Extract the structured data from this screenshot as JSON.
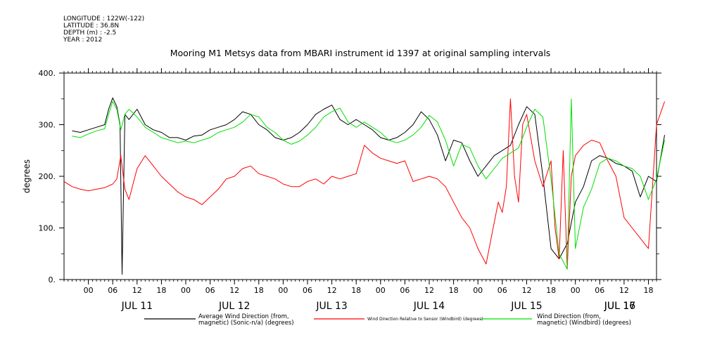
{
  "metadata": {
    "longitude": "LONGITUDE : 122W(-122)",
    "latitude": "LATITUDE : 36.8N",
    "depth": "DEPTH (m) : -2.5",
    "year": "YEAR : 2012"
  },
  "chart_data": {
    "type": "line",
    "title": "Mooring M1 Metsys data from MBARI instrument id 1397 at original sampling intervals",
    "ylabel": "degrees",
    "ylim": [
      0,
      400
    ],
    "y_ticks": [
      0,
      100,
      200,
      300,
      400
    ],
    "y_tick_labels": [
      "0.",
      "100.",
      "200.",
      "300.",
      "400."
    ],
    "x_unit": "hours since 2012-07-11 00:00",
    "xlim": [
      -6,
      140
    ],
    "x_ticks": [
      0,
      6,
      12,
      18,
      24,
      30,
      36,
      42,
      48,
      54,
      60,
      66,
      72,
      78,
      84,
      90,
      96,
      102,
      108,
      114,
      120,
      126,
      132,
      138
    ],
    "x_tick_labels": [
      "00",
      "06",
      "12",
      "18",
      "00",
      "06",
      "12",
      "18",
      "00",
      "06",
      "12",
      "18",
      "00",
      "06",
      "12",
      "18",
      "00",
      "06",
      "12",
      "18",
      "00",
      "06",
      "12",
      "18"
    ],
    "day_labels": [
      {
        "x": 12,
        "label": "JUL 11"
      },
      {
        "x": 36,
        "label": "JUL 12"
      },
      {
        "x": 60,
        "label": "JUL 13"
      },
      {
        "x": 84,
        "label": "JUL 14"
      },
      {
        "x": 108,
        "label": "JUL 15"
      },
      {
        "x": 132,
        "label": "JUL 16"
      },
      {
        "x": 156,
        "label": "JUL 17"
      }
    ],
    "grid": false,
    "legend_position": "bottom",
    "series": [
      {
        "name": "Average Wind Direction (from, magnetic) (Sonic-n/a) (degrees)",
        "legend_lines": [
          "Average Wind Direction (from,",
          "magnetic) (Sonic-n/a) (degrees)"
        ],
        "color": "#000000",
        "x": [
          -4,
          -2,
          0,
          2,
          4,
          5,
          6,
          7,
          7.8,
          8.3,
          9,
          10,
          12,
          14,
          16,
          18,
          20,
          22,
          24,
          26,
          28,
          30,
          32,
          34,
          36,
          38,
          40,
          42,
          44,
          46,
          48,
          50,
          52,
          54,
          56,
          58,
          60,
          62,
          64,
          66,
          68,
          70,
          72,
          74,
          76,
          78,
          80,
          82,
          84,
          86,
          88,
          90,
          92,
          94,
          96,
          98,
          100,
          102,
          104,
          106,
          108,
          110,
          112,
          114,
          116,
          118,
          120,
          122,
          124,
          126,
          128,
          130,
          132,
          134,
          136,
          138,
          140,
          142
        ],
        "y": [
          288,
          285,
          290,
          295,
          300,
          330,
          352,
          335,
          300,
          10,
          320,
          310,
          330,
          300,
          290,
          285,
          275,
          275,
          270,
          278,
          280,
          290,
          295,
          300,
          310,
          325,
          320,
          300,
          290,
          275,
          270,
          275,
          285,
          300,
          320,
          330,
          338,
          310,
          300,
          310,
          300,
          290,
          275,
          270,
          275,
          285,
          300,
          325,
          310,
          280,
          230,
          270,
          265,
          230,
          200,
          220,
          240,
          250,
          260,
          300,
          335,
          320,
          200,
          60,
          40,
          70,
          150,
          180,
          230,
          240,
          235,
          225,
          220,
          210,
          160,
          200,
          190,
          280
        ]
      },
      {
        "name": "Wind Direction Relative to Sensor (Windbird) (degrees)",
        "legend_lines": [
          "Wind Direction Relative to Sensor (Windbird) (degrees)"
        ],
        "color": "#ff0000",
        "x": [
          -6,
          -4,
          -2,
          0,
          2,
          4,
          6,
          7,
          8,
          9,
          10,
          12,
          14,
          16,
          18,
          20,
          22,
          24,
          26,
          28,
          30,
          32,
          34,
          36,
          38,
          40,
          42,
          44,
          46,
          48,
          50,
          52,
          54,
          56,
          58,
          60,
          62,
          64,
          66,
          68,
          70,
          72,
          74,
          76,
          78,
          80,
          82,
          84,
          86,
          88,
          90,
          92,
          94,
          96,
          98,
          100,
          101,
          102,
          103,
          104,
          105,
          106,
          107,
          108,
          110,
          112,
          114,
          115,
          116,
          117,
          118,
          119,
          120,
          122,
          124,
          126,
          128,
          130,
          132,
          134,
          136,
          138,
          140,
          142
        ],
        "y": [
          190,
          180,
          175,
          172,
          175,
          178,
          185,
          195,
          240,
          175,
          155,
          215,
          240,
          220,
          200,
          185,
          170,
          160,
          155,
          145,
          160,
          175,
          195,
          200,
          215,
          220,
          205,
          200,
          195,
          185,
          180,
          180,
          190,
          195,
          185,
          200,
          195,
          200,
          205,
          260,
          245,
          235,
          230,
          225,
          230,
          190,
          195,
          200,
          195,
          180,
          150,
          120,
          100,
          60,
          30,
          110,
          150,
          130,
          180,
          350,
          200,
          150,
          300,
          320,
          230,
          180,
          230,
          100,
          40,
          250,
          20,
          200,
          240,
          260,
          270,
          265,
          230,
          200,
          120,
          100,
          80,
          60,
          300,
          345
        ]
      },
      {
        "name": "Wind Direction (from, magnetic) (Windbird) (degrees)",
        "legend_lines": [
          "Wind Direction (from,",
          "magnetic) (Windbird) (degrees)"
        ],
        "color": "#00e000",
        "x": [
          -4,
          -2,
          0,
          2,
          4,
          5,
          6,
          7,
          8,
          9,
          10,
          12,
          14,
          16,
          18,
          20,
          22,
          24,
          26,
          28,
          30,
          32,
          34,
          36,
          38,
          40,
          42,
          44,
          46,
          48,
          50,
          52,
          54,
          56,
          58,
          60,
          62,
          64,
          66,
          68,
          70,
          72,
          74,
          76,
          78,
          80,
          82,
          84,
          86,
          88,
          90,
          92,
          94,
          96,
          98,
          100,
          102,
          104,
          106,
          108,
          110,
          112,
          114,
          116,
          118,
          119,
          120,
          122,
          124,
          126,
          128,
          130,
          132,
          134,
          136,
          138,
          140,
          142
        ],
        "y": [
          278,
          275,
          282,
          288,
          292,
          320,
          345,
          330,
          290,
          320,
          330,
          315,
          295,
          285,
          275,
          270,
          265,
          268,
          265,
          270,
          275,
          285,
          290,
          295,
          305,
          320,
          315,
          295,
          285,
          270,
          262,
          268,
          280,
          295,
          315,
          325,
          332,
          305,
          295,
          305,
          295,
          285,
          270,
          265,
          270,
          280,
          295,
          318,
          305,
          270,
          220,
          262,
          255,
          220,
          195,
          215,
          235,
          245,
          255,
          295,
          330,
          315,
          195,
          50,
          20,
          350,
          60,
          140,
          175,
          225,
          235,
          230,
          220,
          215,
          200,
          155,
          195,
          270
        ]
      }
    ]
  }
}
